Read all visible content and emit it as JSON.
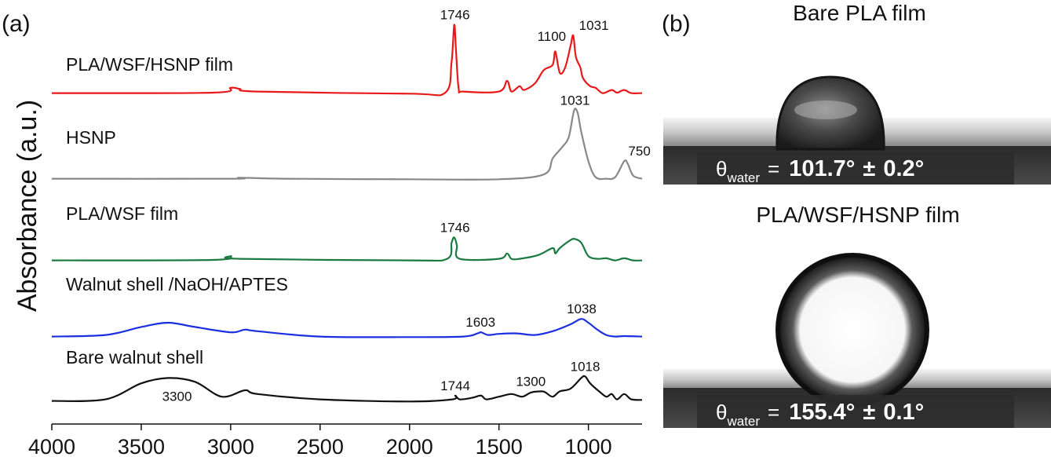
{
  "panel_a_label": "(a)",
  "panel_b_label": "(b)",
  "chart_data": {
    "type": "line",
    "title": "",
    "xlabel": "",
    "ylabel": "Absorbance (a.u.)",
    "xlim": [
      4000,
      700
    ],
    "x_ticks": [
      "4000",
      "3500",
      "3000",
      "2500",
      "2000",
      "1500",
      "1000"
    ],
    "y_ticks": [],
    "grid": false,
    "series": [
      {
        "name": "PLA/WSF/HSNP film",
        "color": "#e8191b",
        "offset": 4.0,
        "points": [
          [
            4000,
            0.02
          ],
          [
            3100,
            0.03
          ],
          [
            3000,
            0.12
          ],
          [
            2950,
            0.1
          ],
          [
            2850,
            0.05
          ],
          [
            2000,
            0.01
          ],
          [
            1800,
            0.03
          ],
          [
            1765,
            0.6
          ],
          [
            1750,
            1.3
          ],
          [
            1740,
            0.8
          ],
          [
            1725,
            0.1
          ],
          [
            1700,
            0.05
          ],
          [
            1500,
            0.05
          ],
          [
            1455,
            0.25
          ],
          [
            1430,
            0.05
          ],
          [
            1385,
            0.15
          ],
          [
            1360,
            0.08
          ],
          [
            1300,
            0.2
          ],
          [
            1250,
            0.45
          ],
          [
            1200,
            0.55
          ],
          [
            1185,
            0.8
          ],
          [
            1160,
            0.4
          ],
          [
            1130,
            0.5
          ],
          [
            1100,
            0.9
          ],
          [
            1085,
            1.1
          ],
          [
            1070,
            0.7
          ],
          [
            1045,
            0.5
          ],
          [
            1030,
            0.3
          ],
          [
            990,
            0.15
          ],
          [
            960,
            0.12
          ],
          [
            920,
            0.02
          ],
          [
            870,
            0.08
          ],
          [
            840,
            0.03
          ],
          [
            800,
            0.08
          ],
          [
            760,
            0.02
          ],
          [
            700,
            0.02
          ]
        ]
      },
      {
        "name": "HSNP",
        "color": "#888888",
        "offset": 3.0,
        "points": [
          [
            4000,
            0.02
          ],
          [
            3000,
            0.02
          ],
          [
            2950,
            0.04
          ],
          [
            2700,
            0.02
          ],
          [
            2000,
            0.01
          ],
          [
            1500,
            0.01
          ],
          [
            1250,
            0.1
          ],
          [
            1200,
            0.4
          ],
          [
            1150,
            0.6
          ],
          [
            1110,
            0.8
          ],
          [
            1080,
            1.3
          ],
          [
            1060,
            1.25
          ],
          [
            1040,
            0.9
          ],
          [
            1000,
            0.35
          ],
          [
            960,
            0.05
          ],
          [
            900,
            0.02
          ],
          [
            850,
            0.05
          ],
          [
            800,
            0.35
          ],
          [
            780,
            0.3
          ],
          [
            750,
            0.08
          ],
          [
            700,
            0.02
          ]
        ]
      },
      {
        "name": "PLA/WSF film",
        "color": "#1a7a40",
        "offset": 2.0,
        "points": [
          [
            4000,
            0.02
          ],
          [
            3100,
            0.03
          ],
          [
            3000,
            0.1
          ],
          [
            2950,
            0.05
          ],
          [
            2000,
            0.02
          ],
          [
            1790,
            0.05
          ],
          [
            1765,
            0.35
          ],
          [
            1750,
            0.45
          ],
          [
            1735,
            0.3
          ],
          [
            1720,
            0.05
          ],
          [
            1500,
            0.05
          ],
          [
            1455,
            0.15
          ],
          [
            1430,
            0.05
          ],
          [
            1385,
            0.05
          ],
          [
            1280,
            0.12
          ],
          [
            1200,
            0.25
          ],
          [
            1185,
            0.15
          ],
          [
            1160,
            0.25
          ],
          [
            1100,
            0.4
          ],
          [
            1075,
            0.42
          ],
          [
            1040,
            0.35
          ],
          [
            1000,
            0.1
          ],
          [
            950,
            0.05
          ],
          [
            900,
            0.06
          ],
          [
            850,
            0.02
          ],
          [
            800,
            0.06
          ],
          [
            750,
            0.02
          ],
          [
            700,
            0.02
          ]
        ]
      },
      {
        "name": "Walnut shell /NaOH/APTES",
        "color": "#1a2fe0",
        "offset": 1.0,
        "points": [
          [
            4000,
            0.02
          ],
          [
            3700,
            0.05
          ],
          [
            3500,
            0.2
          ],
          [
            3350,
            0.28
          ],
          [
            3200,
            0.2
          ],
          [
            3000,
            0.1
          ],
          [
            2920,
            0.15
          ],
          [
            2850,
            0.12
          ],
          [
            2500,
            0.02
          ],
          [
            2000,
            0.01
          ],
          [
            1700,
            0.02
          ],
          [
            1620,
            0.08
          ],
          [
            1600,
            0.1
          ],
          [
            1560,
            0.05
          ],
          [
            1500,
            0.07
          ],
          [
            1400,
            0.08
          ],
          [
            1300,
            0.05
          ],
          [
            1200,
            0.12
          ],
          [
            1100,
            0.25
          ],
          [
            1040,
            0.35
          ],
          [
            1000,
            0.28
          ],
          [
            950,
            0.15
          ],
          [
            900,
            0.05
          ],
          [
            850,
            0.02
          ],
          [
            800,
            0.03
          ],
          [
            700,
            0.02
          ]
        ]
      },
      {
        "name": "Bare walnut shell",
        "color": "#111111",
        "offset": 0.0,
        "points": [
          [
            4000,
            0.02
          ],
          [
            3700,
            0.05
          ],
          [
            3500,
            0.35
          ],
          [
            3350,
            0.45
          ],
          [
            3200,
            0.38
          ],
          [
            3050,
            0.1
          ],
          [
            2920,
            0.22
          ],
          [
            2850,
            0.15
          ],
          [
            2500,
            0.05
          ],
          [
            2000,
            0.01
          ],
          [
            1760,
            0.05
          ],
          [
            1744,
            0.12
          ],
          [
            1720,
            0.05
          ],
          [
            1650,
            0.08
          ],
          [
            1600,
            0.12
          ],
          [
            1570,
            0.05
          ],
          [
            1500,
            0.1
          ],
          [
            1430,
            0.15
          ],
          [
            1370,
            0.1
          ],
          [
            1320,
            0.18
          ],
          [
            1260,
            0.2
          ],
          [
            1240,
            0.18
          ],
          [
            1200,
            0.1
          ],
          [
            1160,
            0.2
          ],
          [
            1100,
            0.25
          ],
          [
            1040,
            0.45
          ],
          [
            1018,
            0.48
          ],
          [
            990,
            0.35
          ],
          [
            940,
            0.2
          ],
          [
            900,
            0.1
          ],
          [
            870,
            0.15
          ],
          [
            840,
            0.05
          ],
          [
            800,
            0.15
          ],
          [
            760,
            0.05
          ],
          [
            700,
            0.04
          ]
        ]
      }
    ],
    "annotations": [
      {
        "series": 0,
        "x": 1746,
        "y": 1.3,
        "text": "1746"
      },
      {
        "series": 0,
        "x": 1100,
        "y": 0.9,
        "text": "1100",
        "dx": -24
      },
      {
        "series": 0,
        "x": 1031,
        "y": 1.1,
        "text": "1031",
        "dx": 14
      },
      {
        "series": 1,
        "x": 1031,
        "y": 1.3,
        "text": "1031",
        "dx": -10
      },
      {
        "series": 1,
        "x": 750,
        "y": 0.35,
        "text": "750",
        "dx": 8
      },
      {
        "series": 2,
        "x": 1746,
        "y": 0.45,
        "text": "1746"
      },
      {
        "series": 3,
        "x": 1603,
        "y": 0.1,
        "text": "1603"
      },
      {
        "series": 3,
        "x": 1038,
        "y": 0.35,
        "text": "1038"
      },
      {
        "series": 4,
        "x": 3300,
        "y": 0.05,
        "text": "3300",
        "below": true
      },
      {
        "series": 4,
        "x": 1744,
        "y": 0.12,
        "text": "1744"
      },
      {
        "series": 4,
        "x": 1300,
        "y": 0.2,
        "text": "1300",
        "dx": -5
      },
      {
        "series": 4,
        "x": 1018,
        "y": 0.48,
        "text": "1018"
      }
    ]
  },
  "photos": [
    {
      "title": "Bare PLA film",
      "symbol": "θ",
      "subscript": "water",
      "equals": "=",
      "value": "101.7°",
      "pm": "±",
      "error": "0.2°"
    },
    {
      "title": "PLA/WSF/HSNP film",
      "symbol": "θ",
      "subscript": "water",
      "equals": "=",
      "value": "155.4°",
      "pm": "±",
      "error": "0.1°"
    }
  ]
}
